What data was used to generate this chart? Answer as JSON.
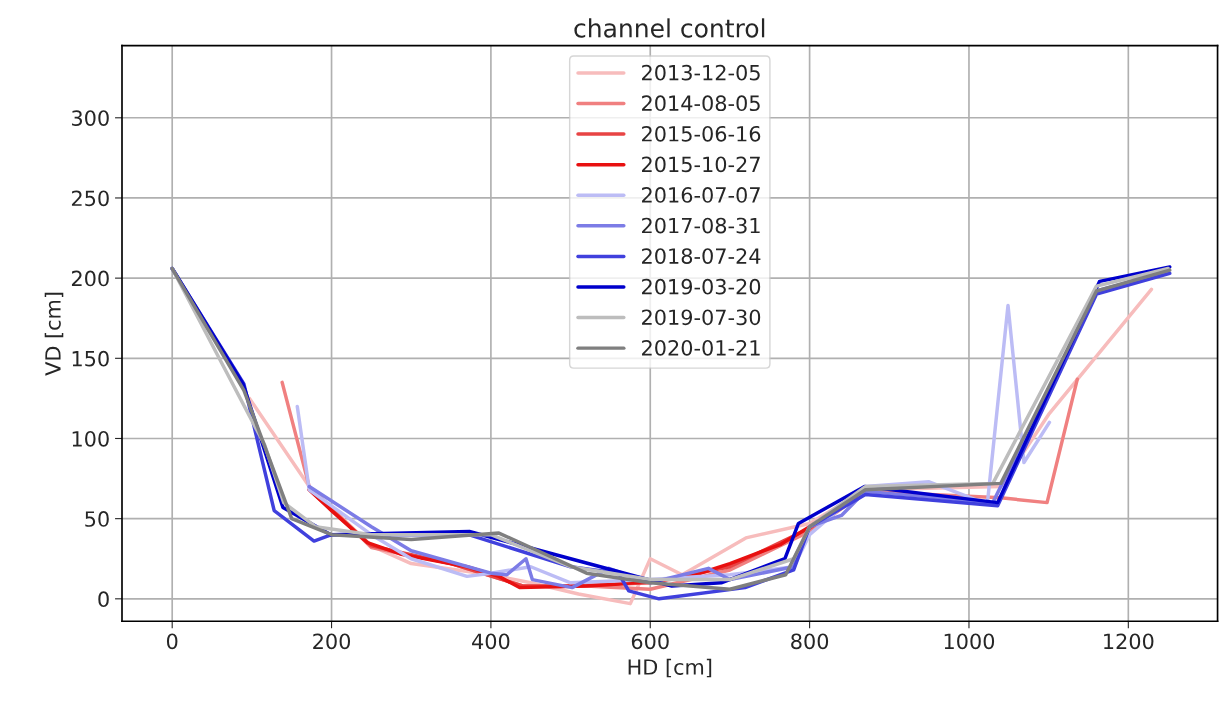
{
  "chart_data": {
    "type": "line",
    "title": "channel control",
    "xlabel": "HD [cm]",
    "ylabel": "VD [cm]",
    "xlim": [
      -63,
      1312
    ],
    "ylim": [
      -14,
      345
    ],
    "xticks": [
      0,
      200,
      400,
      600,
      800,
      1000,
      1200
    ],
    "yticks": [
      0,
      50,
      100,
      150,
      200,
      250,
      300
    ],
    "grid": true,
    "legend": "top",
    "line_style": "solid",
    "marker": "none",
    "series": [
      {
        "name": "2013-12-05",
        "color": "#f7bcbc",
        "x": [
          97,
          172,
          250,
          300,
          400,
          450,
          510,
          575,
          600,
          640,
          720,
          800,
          870,
          1040,
          1100,
          1229
        ],
        "values": [
          125,
          70,
          33,
          22,
          15,
          10,
          3,
          -3,
          25,
          15,
          38,
          47,
          68,
          70,
          115,
          193
        ]
      },
      {
        "name": "2014-08-05",
        "color": "#f08080",
        "x": [
          138,
          172,
          250,
          350,
          440,
          520,
          600,
          700,
          800,
          870,
          1040,
          1098,
          1136
        ],
        "values": [
          135,
          70,
          32,
          22,
          8,
          8,
          6,
          18,
          42,
          67,
          63,
          60,
          137
        ]
      },
      {
        "name": "2015-06-16",
        "color": "#e84444",
        "x": [
          172,
          250,
          350,
          440,
          500,
          600,
          700,
          800,
          870
        ],
        "values": [
          68,
          33,
          22,
          8,
          8,
          10,
          20,
          44,
          68
        ]
      },
      {
        "name": "2015-10-27",
        "color": "#e81010",
        "x": [
          172,
          200,
          245,
          286,
          370,
          410,
          436,
          520,
          556,
          644,
          700,
          764,
          800,
          870
        ],
        "values": [
          68,
          55,
          35,
          28,
          20,
          14,
          7,
          8,
          9,
          13,
          22,
          34,
          45,
          68
        ]
      },
      {
        "name": "2016-07-07",
        "color": "#bcbcf5",
        "x": [
          157,
          172,
          250,
          300,
          370,
          400,
          450,
          500,
          600,
          700,
          780,
          800,
          870,
          950,
          1023,
          1049,
          1069,
          1101
        ],
        "values": [
          120,
          68,
          40,
          25,
          14,
          16,
          20,
          10,
          12,
          15,
          20,
          40,
          70,
          73,
          59,
          183,
          85,
          110
        ]
      },
      {
        "name": "2017-08-31",
        "color": "#7c7ce6",
        "x": [
          172,
          250,
          300,
          400,
          420,
          444,
          452,
          502,
          548,
          600,
          673,
          700,
          780,
          800,
          840,
          870,
          1030,
          1160,
          1250
        ],
        "values": [
          70,
          45,
          30,
          16,
          15,
          25,
          12,
          7,
          19,
          10,
          19,
          12,
          20,
          45,
          52,
          67,
          60,
          192,
          204
        ]
      },
      {
        "name": "2018-07-24",
        "color": "#4040dd",
        "x": [
          0,
          90,
          128,
          178,
          200,
          372,
          500,
          560,
          573,
          611,
          719,
          780,
          800,
          870,
          1036,
          1160,
          1252
        ],
        "values": [
          206,
          134,
          55,
          36,
          40,
          40,
          20,
          16,
          5,
          0,
          7,
          18,
          45,
          65,
          58,
          190,
          203
        ]
      },
      {
        "name": "2019-03-20",
        "color": "#0000cc",
        "x": [
          0,
          89,
          139,
          199,
          373,
          627,
          689,
          769,
          786,
          869,
          1036,
          1164,
          1252
        ],
        "values": [
          206,
          134,
          57,
          40,
          42,
          8,
          10,
          25,
          47,
          70,
          60,
          198,
          207
        ]
      },
      {
        "name": "2019-07-30",
        "color": "#bdbdbd",
        "x": [
          0,
          116,
          140,
          180,
          250,
          400,
          500,
          600,
          700,
          780,
          800,
          870,
          1030,
          1160,
          1250
        ],
        "values": [
          206,
          96,
          60,
          45,
          40,
          40,
          20,
          12,
          12,
          25,
          45,
          70,
          72,
          195,
          206
        ]
      },
      {
        "name": "2020-01-21",
        "color": "#7f7f7f",
        "x": [
          0,
          90,
          150,
          200,
          300,
          410,
          450,
          520,
          600,
          700,
          770,
          800,
          870,
          1040,
          1160,
          1252
        ],
        "values": [
          206,
          130,
          50,
          40,
          37,
          41,
          32,
          16,
          10,
          6,
          15,
          45,
          68,
          72,
          192,
          205
        ]
      }
    ]
  }
}
